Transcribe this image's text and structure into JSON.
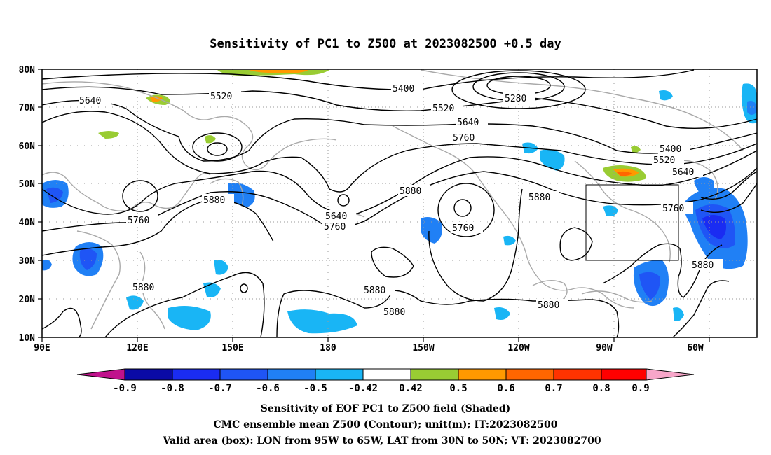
{
  "title": "Sensitivity of PC1 to Z500 at 2023082500 +0.5 day",
  "map": {
    "lat_labels": [
      "80N",
      "70N",
      "60N",
      "50N",
      "40N",
      "30N",
      "20N",
      "10N"
    ],
    "lon_labels": [
      "90E",
      "120E",
      "150E",
      "180",
      "150W",
      "120W",
      "90W",
      "60W"
    ],
    "contour_labels": [
      {
        "text": "5640"
      },
      {
        "text": "5520"
      },
      {
        "text": "5400"
      },
      {
        "text": "5280"
      },
      {
        "text": "5520"
      },
      {
        "text": "5640"
      },
      {
        "text": "5760"
      },
      {
        "text": "5400"
      },
      {
        "text": "5520"
      },
      {
        "text": "5640"
      },
      {
        "text": "5880"
      },
      {
        "text": "5760"
      },
      {
        "text": "5880"
      },
      {
        "text": "5640"
      },
      {
        "text": "5760"
      },
      {
        "text": "5880"
      },
      {
        "text": "5760"
      },
      {
        "text": "5760"
      },
      {
        "text": "5880"
      },
      {
        "text": "5880"
      },
      {
        "text": "5880"
      },
      {
        "text": "5880"
      },
      {
        "text": "5880"
      }
    ],
    "valid_box": {
      "lon_from": "95W",
      "lon_to": "65W",
      "lat_from": "30N",
      "lat_to": "50N"
    }
  },
  "colorbar": {
    "labels": [
      "-0.9",
      "-0.8",
      "-0.7",
      "-0.6",
      "-0.5",
      "-0.42",
      "0.42",
      "0.5",
      "0.6",
      "0.7",
      "0.8",
      "0.9"
    ],
    "colors": {
      "low_arrow": "#c0128c",
      "c1": "#0a0aa6",
      "c2": "#1a2cf2",
      "c3": "#1f55f5",
      "c4": "#2080f5",
      "c5": "#19b5f5",
      "white": "#ffffff",
      "green": "#99cc33",
      "orange": "#ff9900",
      "orange2": "#ff6600",
      "red1": "#ff3300",
      "red2": "#ff0000",
      "high_arrow": "#f7a6c9"
    }
  },
  "captions": {
    "line1": "Sensitivity of EOF PC1 to Z500 field (Shaded)",
    "line2": "CMC ensemble mean Z500 (Contour); unit(m); IT:2023082500",
    "line3": "Valid area (box): LON from 95W to 65W, LAT from 30N to 50N; VT: 2023082700"
  }
}
